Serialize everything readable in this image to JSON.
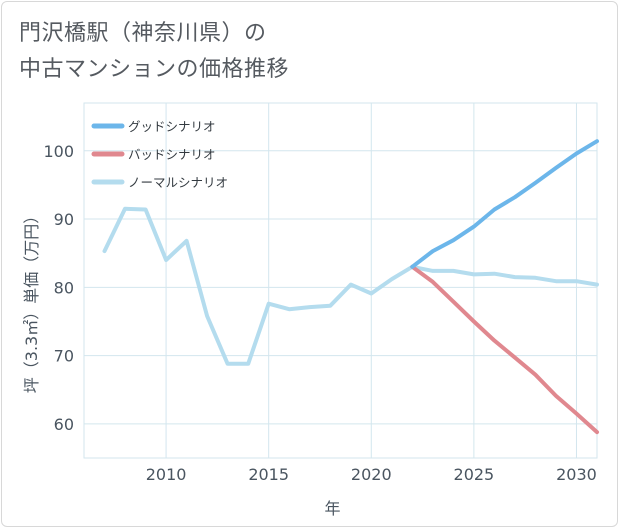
{
  "title_lines": [
    "門沢橋駅（神奈川県）の",
    "中古マンションの価格推移"
  ],
  "chart_data": {
    "type": "line",
    "title": "門沢橋駅（神奈川県）の中古マンションの価格推移",
    "xlabel": "年",
    "ylabel": "坪（3.3㎡）単価（万円）",
    "xlim": [
      2006,
      2031
    ],
    "ylim": [
      55,
      107
    ],
    "xticks": [
      2010,
      2015,
      2020,
      2025,
      2030
    ],
    "yticks": [
      60,
      70,
      80,
      90,
      100
    ],
    "grid": true,
    "legend_position": "top-left",
    "series": [
      {
        "name": "グッドシナリオ",
        "color": "#6cb6ea",
        "x": [
          2022,
          2023,
          2024,
          2025,
          2026,
          2027,
          2028,
          2029,
          2030,
          2031
        ],
        "values": [
          83.0,
          85.3,
          86.9,
          88.9,
          91.4,
          93.2,
          95.3,
          97.5,
          99.6,
          101.4
        ]
      },
      {
        "name": "バッドシナリオ",
        "color": "#e0888f",
        "x": [
          2022,
          2023,
          2024,
          2025,
          2026,
          2027,
          2028,
          2029,
          2030,
          2031
        ],
        "values": [
          83.0,
          80.8,
          77.9,
          75.0,
          72.2,
          69.7,
          67.2,
          64.1,
          61.5,
          58.8
        ]
      },
      {
        "name": "ノーマルシナリオ",
        "color": "#b4dcee",
        "x": [
          2007,
          2008,
          2009,
          2010,
          2011,
          2012,
          2013,
          2014,
          2015,
          2016,
          2017,
          2018,
          2019,
          2020,
          2021,
          2022,
          2023,
          2024,
          2025,
          2026,
          2027,
          2028,
          2029,
          2030,
          2031
        ],
        "values": [
          85.3,
          91.5,
          91.4,
          84.0,
          86.8,
          75.8,
          68.8,
          68.8,
          77.6,
          76.8,
          77.1,
          77.3,
          80.4,
          79.1,
          81.2,
          83.0,
          82.4,
          82.4,
          81.9,
          82.0,
          81.5,
          81.4,
          80.9,
          80.9,
          80.4
        ]
      }
    ]
  }
}
